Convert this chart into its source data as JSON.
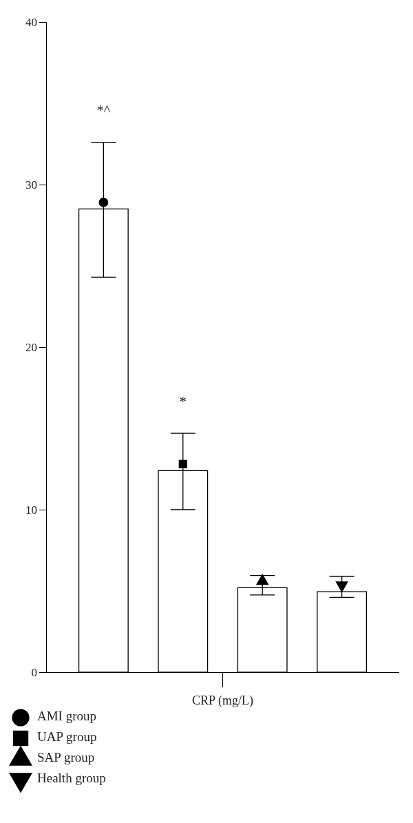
{
  "chart_data": {
    "type": "bar",
    "categories": [
      "CRP (mg/L)"
    ],
    "series": [
      {
        "name": "AMI group",
        "color": "#000000",
        "marker": "circle",
        "values": [
          28.5
        ],
        "errors": [
          [
            24.3,
            32.6
          ]
        ]
      },
      {
        "name": "UAP group",
        "color": "#000000",
        "marker": "square",
        "values": [
          12.4
        ],
        "errors": [
          [
            10.0,
            14.7
          ]
        ]
      },
      {
        "name": "SAP group",
        "color": "#000000",
        "marker": "triangle",
        "values": [
          5.2
        ],
        "errors": [
          [
            4.75,
            5.95
          ]
        ]
      },
      {
        "name": "Health group",
        "color": "#000000",
        "marker": "triangle-down",
        "values": [
          4.95
        ],
        "errors": [
          [
            4.6,
            5.9
          ]
        ]
      }
    ],
    "ylim": [
      0,
      40
    ],
    "yticks": [
      0,
      10,
      20,
      30,
      40
    ],
    "grid": false,
    "legend": "bottom left",
    "annotations": [
      "*^",
      "*"
    ]
  }
}
